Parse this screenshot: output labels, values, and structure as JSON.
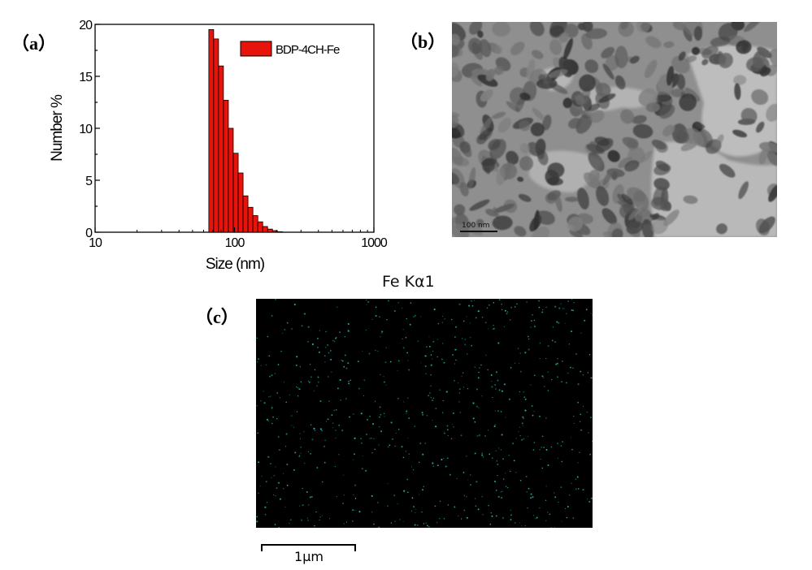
{
  "panels": {
    "a": "（a）",
    "b": "（b）",
    "c": "（c）"
  },
  "chart_data": {
    "type": "bar",
    "xlabel": "Size (nm)",
    "ylabel": "Number %",
    "xscale": "log",
    "xlim": [
      10,
      1000
    ],
    "ylim": [
      0,
      20
    ],
    "xticks": [
      "10",
      "100",
      "1000"
    ],
    "yticks": [
      "0",
      "5",
      "10",
      "15",
      "20"
    ],
    "legend": {
      "position": "top-right",
      "entries": [
        "BDP-4CH-Fe"
      ]
    },
    "grid": false,
    "color": "#e8140c",
    "series": [
      {
        "name": "BDP-4CH-Fe",
        "x": [
          68.1,
          73.8,
          80.0,
          86.8,
          94.1,
          102.1,
          110.7,
          120.0,
          130.2,
          141.2,
          153.1,
          166.0,
          180.0,
          195.2,
          211.7
        ],
        "values": [
          19.5,
          18.6,
          16.0,
          12.7,
          10.0,
          7.6,
          5.7,
          3.5,
          2.4,
          1.6,
          1.0,
          0.55,
          0.3,
          0.15,
          0.05
        ]
      }
    ]
  },
  "tem": {
    "scale_bar_label": "100 nm"
  },
  "eds_map": {
    "title": "Fe Kα1",
    "dot_color": "#2ab3a6",
    "scale_bar_label": "1μm"
  }
}
